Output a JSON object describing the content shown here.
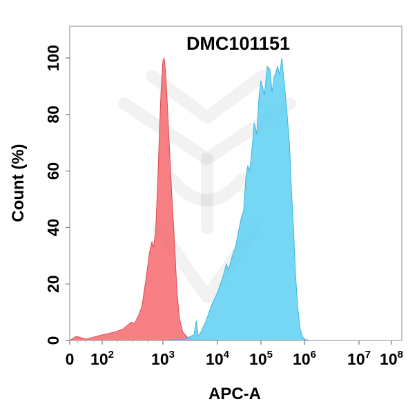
{
  "chart_data": {
    "type": "area",
    "title": "DMC101151",
    "xlabel": "APC-A",
    "ylabel": "Count  (%)",
    "x_scale": "biexponential",
    "x_ticks": [
      {
        "base": "0",
        "exp": ""
      },
      {
        "base": "10",
        "exp": "2"
      },
      {
        "base": "10",
        "exp": "3"
      },
      {
        "base": "10",
        "exp": "4"
      },
      {
        "base": "10",
        "exp": "5"
      },
      {
        "base": "10",
        "exp": "6"
      },
      {
        "base": "10",
        "exp": "7"
      },
      {
        "base": "10",
        "exp": "8"
      }
    ],
    "y_ticks": [
      "0",
      "20",
      "40",
      "60",
      "80",
      "100"
    ],
    "ylim": [
      0,
      100
    ],
    "grid": false,
    "legend": "none",
    "series": [
      {
        "color": "#f46a6e",
        "stroke": "#d94c52",
        "points": [
          [
            0,
            0
          ],
          [
            20,
            1.5
          ],
          [
            50,
            0.5
          ],
          [
            100,
            2
          ],
          [
            160,
            3
          ],
          [
            220,
            4
          ],
          [
            300,
            6.5
          ],
          [
            340,
            6
          ],
          [
            400,
            9
          ],
          [
            450,
            12
          ],
          [
            520,
            21
          ],
          [
            600,
            31
          ],
          [
            660,
            35
          ],
          [
            700,
            33
          ],
          [
            760,
            39
          ],
          [
            820,
            56
          ],
          [
            870,
            72
          ],
          [
            930,
            88
          ],
          [
            1000,
            99
          ],
          [
            1050,
            100
          ],
          [
            1110,
            96
          ],
          [
            1200,
            84
          ],
          [
            1320,
            68
          ],
          [
            1450,
            52
          ],
          [
            1600,
            38
          ],
          [
            1800,
            18
          ],
          [
            2000,
            8
          ],
          [
            2300,
            3
          ],
          [
            2800,
            1.2
          ],
          [
            3400,
            0.3
          ],
          [
            10000,
            0.1
          ],
          [
            120000,
            0
          ],
          [
            1000000,
            0
          ]
        ]
      },
      {
        "color": "#5ed0f2",
        "stroke": "#3bb5dc",
        "points": [
          [
            1000,
            0
          ],
          [
            2500,
            0.5
          ],
          [
            3700,
            2
          ],
          [
            4100,
            7
          ],
          [
            4400,
            1.5
          ],
          [
            5000,
            3
          ],
          [
            6200,
            7
          ],
          [
            8000,
            13
          ],
          [
            10000,
            17
          ],
          [
            13000,
            22
          ],
          [
            16000,
            27
          ],
          [
            18000,
            25
          ],
          [
            22000,
            30
          ],
          [
            26000,
            33
          ],
          [
            30000,
            38
          ],
          [
            36000,
            44
          ],
          [
            40000,
            46
          ],
          [
            45000,
            58
          ],
          [
            50000,
            62
          ],
          [
            55000,
            60
          ],
          [
            60000,
            65
          ],
          [
            70000,
            77
          ],
          [
            80000,
            73
          ],
          [
            90000,
            86
          ],
          [
            100000,
            92
          ],
          [
            120000,
            87
          ],
          [
            140000,
            97
          ],
          [
            160000,
            96
          ],
          [
            180000,
            88
          ],
          [
            200000,
            93
          ],
          [
            240000,
            97
          ],
          [
            270000,
            94
          ],
          [
            300000,
            100
          ],
          [
            350000,
            90
          ],
          [
            400000,
            80
          ],
          [
            450000,
            70
          ],
          [
            500000,
            54
          ],
          [
            560000,
            40
          ],
          [
            620000,
            24
          ],
          [
            700000,
            12
          ],
          [
            800000,
            4
          ],
          [
            900000,
            1.5
          ],
          [
            1000000,
            0.5
          ],
          [
            1200000,
            0
          ]
        ]
      }
    ]
  }
}
